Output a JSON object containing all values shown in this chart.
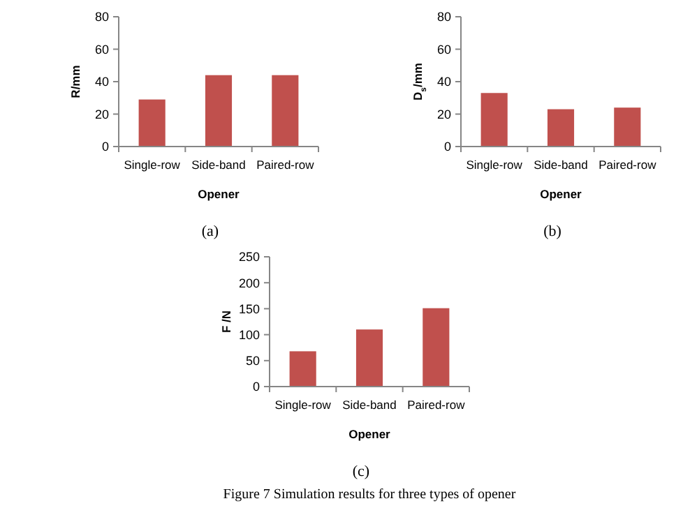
{
  "chart_data": [
    {
      "type": "bar",
      "ylabel": "R/mm",
      "xlabel": "Opener",
      "categories": [
        "Single-row",
        "Side-band",
        "Paired-row"
      ],
      "values": [
        29,
        44,
        44
      ],
      "color": "#c0504d",
      "ylim": [
        0,
        80
      ],
      "yticks": [
        0,
        20,
        40,
        60,
        80
      ],
      "grid": false,
      "annotations": [
        "(a)"
      ]
    },
    {
      "type": "bar",
      "ylabel": "D$_{s}$/mm",
      "xlabel": "Opener",
      "categories": [
        "Single-row",
        "Side-band",
        "Paired-row"
      ],
      "values": [
        33,
        23,
        24
      ],
      "color": "#c0504d",
      "ylim": [
        0,
        80
      ],
      "yticks": [
        0,
        20,
        40,
        60,
        80
      ],
      "grid": false,
      "annotations": [
        "(b)"
      ]
    },
    {
      "type": "bar",
      "ylabel": "F /N",
      "xlabel": "Opener",
      "categories": [
        "Single-row",
        "Side-band",
        "Paired-row"
      ],
      "values": [
        68,
        110,
        151
      ],
      "color": "#c0504d",
      "ylim": [
        0,
        250
      ],
      "yticks": [
        0,
        50,
        100,
        150,
        200,
        250
      ],
      "grid": false,
      "annotations": [
        "(c)",
        "Figure 7 Simulation results for three types of opener"
      ]
    }
  ]
}
